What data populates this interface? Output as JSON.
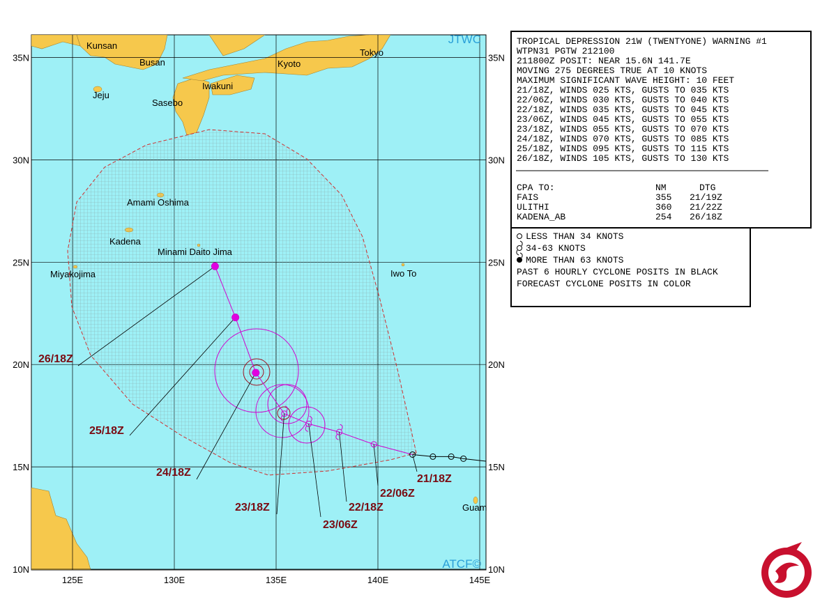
{
  "map": {
    "jtwc": "JTWC",
    "atcf": "ATCF©",
    "lat_ticks": [
      {
        "value": 35,
        "label": "35N"
      },
      {
        "value": 30,
        "label": "30N"
      },
      {
        "value": 25,
        "label": "25N"
      },
      {
        "value": 20,
        "label": "20N"
      },
      {
        "value": 15,
        "label": "15N"
      },
      {
        "value": 10,
        "label": "10N"
      }
    ],
    "lon_ticks": [
      {
        "value": 125,
        "label": "125E"
      },
      {
        "value": 130,
        "label": "130E"
      },
      {
        "value": 135,
        "label": "135E"
      },
      {
        "value": 140,
        "label": "140E"
      },
      {
        "value": 145,
        "label": "145E"
      }
    ],
    "places": [
      "Kunsan",
      "Busan",
      "Tokyo",
      "Kyoto",
      "Iwakuni",
      "Jeju",
      "Sasebo",
      "Amami Oshima",
      "Kadena",
      "Minami Daito Jima",
      "Miyakojima",
      "Iwo To",
      "Guam"
    ],
    "forecast": [
      {
        "label": "21/18Z",
        "lat": 15.6,
        "lon": 141.7,
        "symbol": "open-black"
      },
      {
        "label": "22/06Z",
        "lat": 16.1,
        "lon": 139.8,
        "symbol": "open"
      },
      {
        "label": "22/18Z",
        "lat": 16.7,
        "lon": 138.1,
        "symbol": "storm"
      },
      {
        "label": "23/06Z",
        "lat": 17.1,
        "lon": 136.6,
        "symbol": "storm"
      },
      {
        "label": "23/18Z",
        "lat": 17.6,
        "lon": 135.4,
        "symbol": "storm"
      },
      {
        "label": "24/18Z",
        "lat": 19.6,
        "lon": 134.0,
        "symbol": "filled"
      },
      {
        "label": "25/18Z",
        "lat": 22.3,
        "lon": 133.0,
        "symbol": "filled"
      },
      {
        "label": "26/18Z",
        "lat": 24.8,
        "lon": 132.0,
        "symbol": "filled"
      }
    ],
    "past": [
      {
        "lat": 15.5,
        "lon": 142.7
      },
      {
        "lat": 15.5,
        "lon": 143.6
      },
      {
        "lat": 15.4,
        "lon": 144.2
      }
    ]
  },
  "warning": {
    "lines": [
      "TROPICAL DEPRESSION 21W (TWENTYONE) WARNING #1",
      "WTPN31 PGTW 212100",
      "211800Z POSIT: NEAR 15.6N 141.7E",
      "MOVING 275 DEGREES TRUE AT 10 KNOTS",
      "MAXIMUM SIGNIFICANT WAVE HEIGHT: 10 FEET",
      "21/18Z, WINDS 025 KTS, GUSTS TO 035 KTS",
      "22/06Z, WINDS 030 KTS, GUSTS TO 040 KTS",
      "22/18Z, WINDS 035 KTS, GUSTS TO 045 KTS",
      "23/06Z, WINDS 045 KTS, GUSTS TO 055 KTS",
      "23/18Z, WINDS 055 KTS, GUSTS TO 070 KTS",
      "24/18Z, WINDS 070 KTS, GUSTS TO 085 KTS",
      "25/18Z, WINDS 095 KTS, GUSTS TO 115 KTS",
      "26/18Z, WINDS 105 KTS, GUSTS TO 130 KTS"
    ],
    "cpa": {
      "title": "CPA TO:",
      "nm": "NM",
      "dtg": "DTG",
      "rows": [
        {
          "site": "FAIS",
          "nm": 355,
          "dtg": "21/19Z"
        },
        {
          "site": "ULITHI",
          "nm": 360,
          "dtg": "21/22Z"
        },
        {
          "site": "KADENA_AB",
          "nm": 254,
          "dtg": "26/18Z"
        }
      ]
    }
  },
  "legend": [
    "LESS THAN 34 KNOTS",
    "34-63 KNOTS",
    "MORE THAN 63 KNOTS",
    "PAST 6 HOURLY CYCLONE POSITS IN BLACK",
    "FORECAST CYCLONE POSITS IN COLOR"
  ]
}
